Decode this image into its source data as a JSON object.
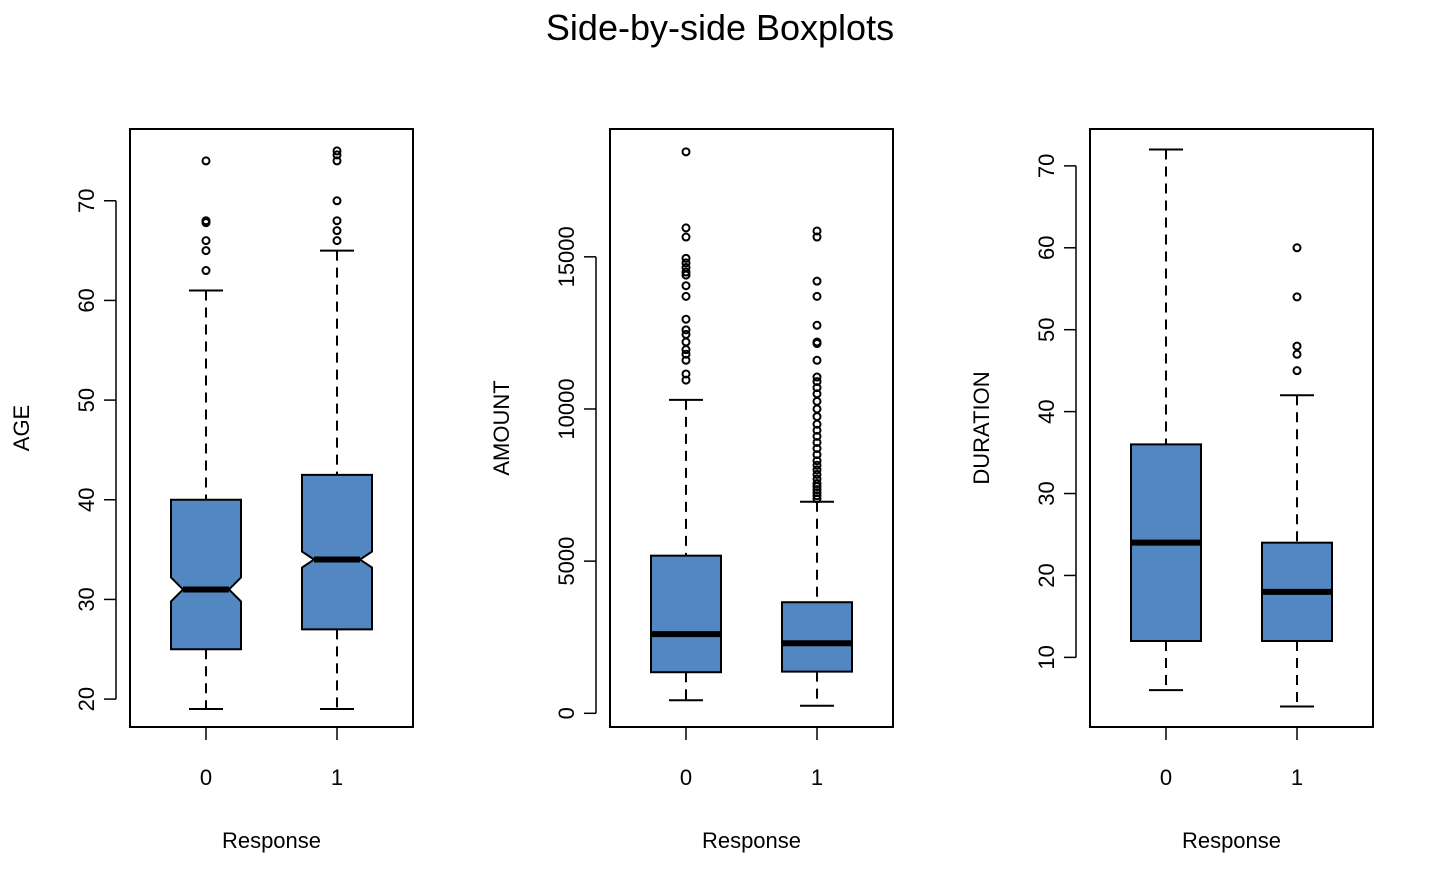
{
  "title": "Side-by-side Boxplots",
  "colors": {
    "box_fill": "#5387C1",
    "stroke": "#000000",
    "background": "#FFFFFF"
  },
  "chart_data": [
    {
      "type": "boxplot",
      "notched": true,
      "xlabel": "Response",
      "ylabel": "AGE",
      "categories": [
        "0",
        "1"
      ],
      "yticks": [
        20,
        30,
        40,
        50,
        60,
        70
      ],
      "ylim": [
        17.2,
        77.2
      ],
      "boxes": [
        {
          "category": "0",
          "whisker_low": 19,
          "q1": 25,
          "median": 31,
          "q3": 40,
          "whisker_high": 61,
          "notch_low": 29.8,
          "notch_high": 32.2,
          "outliers": [
            63,
            65,
            66,
            67.8,
            68,
            74
          ]
        },
        {
          "category": "1",
          "whisker_low": 19,
          "q1": 27,
          "median": 34,
          "q3": 42.5,
          "whisker_high": 65,
          "notch_low": 33.2,
          "notch_high": 34.8,
          "outliers": [
            66,
            67,
            68,
            70,
            74,
            74.6,
            75
          ]
        }
      ]
    },
    {
      "type": "boxplot",
      "notched": false,
      "xlabel": "Response",
      "ylabel": "AMOUNT",
      "categories": [
        "0",
        "1"
      ],
      "yticks": [
        0,
        5000,
        10000,
        15000
      ],
      "ylim": [
        -450,
        19200
      ],
      "boxes": [
        {
          "category": "0",
          "whisker_low": 430,
          "q1": 1350,
          "median": 2600,
          "q3": 5180,
          "whisker_high": 10300,
          "outliers": [
            10950,
            11150,
            11600,
            11800,
            11950,
            12200,
            12450,
            12600,
            12950,
            13700,
            14050,
            14400,
            14500,
            14650,
            14800,
            14950,
            15650,
            15950,
            18450
          ]
        },
        {
          "category": "1",
          "whisker_low": 250,
          "q1": 1370,
          "median": 2300,
          "q3": 3650,
          "whisker_high": 6950,
          "outliers": [
            7050,
            7150,
            7250,
            7350,
            7450,
            7550,
            7700,
            7850,
            8000,
            8150,
            8300,
            8500,
            8700,
            8900,
            9100,
            9300,
            9500,
            9750,
            10000,
            10250,
            10500,
            10700,
            10900,
            11050,
            11600,
            12150,
            12200,
            12750,
            13700,
            14200,
            15650,
            15850
          ]
        }
      ]
    },
    {
      "type": "boxplot",
      "notched": false,
      "xlabel": "Response",
      "ylabel": "DURATION",
      "categories": [
        "0",
        "1"
      ],
      "yticks": [
        10,
        20,
        30,
        40,
        50,
        60,
        70
      ],
      "ylim": [
        1.5,
        74.5
      ],
      "boxes": [
        {
          "category": "0",
          "whisker_low": 6,
          "q1": 12,
          "median": 24,
          "q3": 36,
          "whisker_high": 72,
          "outliers": []
        },
        {
          "category": "1",
          "whisker_low": 4,
          "q1": 12,
          "median": 18,
          "q3": 24,
          "whisker_high": 42,
          "outliers": [
            45,
            47,
            48,
            54,
            60
          ]
        }
      ]
    }
  ]
}
